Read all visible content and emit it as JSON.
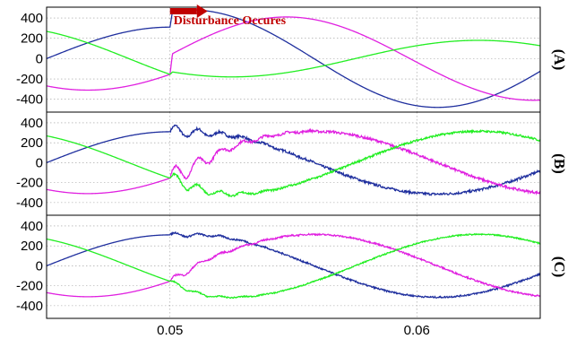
{
  "chart_data": {
    "type": "line",
    "xlim": [
      0.045,
      0.065
    ],
    "xticks": [
      0.05,
      0.06
    ],
    "xtick_labels": [
      "0.05",
      "0.06"
    ],
    "grid": true,
    "annotation": {
      "text": "Disturbance Occures",
      "x": 0.05,
      "color": "#c00000"
    },
    "series_colors": {
      "blue": "#1f2f9e",
      "magenta": "#e020e0",
      "green": "#22ee22"
    },
    "panels": [
      {
        "label": "(A)",
        "ylim": [
          -500,
          480
        ],
        "yticks": [
          400,
          200,
          0,
          -200,
          -400
        ],
        "ytick_labels": [
          "400",
          "200",
          "0",
          "-200",
          "-400"
        ],
        "series": [
          {
            "color": "blue",
            "before": {
              "amp": 310,
              "phase_deg": 0
            },
            "after": {
              "amp": 480,
              "phase_deg": -15,
              "transition_ms": 0.1
            },
            "noise": 0
          },
          {
            "color": "magenta",
            "before": {
              "amp": 310,
              "phase_deg": -120
            },
            "after": {
              "amp": 410,
              "phase_deg": -85,
              "transition_ms": 0.1
            },
            "noise": 0
          },
          {
            "color": "green",
            "before": {
              "amp": 310,
              "phase_deg": 120
            },
            "after": {
              "amp": 180,
              "phase_deg": 135,
              "transition_ms": 0.1
            },
            "noise": 0
          }
        ]
      },
      {
        "label": "(B)",
        "ylim": [
          -500,
          480
        ],
        "yticks": [
          400,
          200,
          0,
          -200,
          -400
        ],
        "ytick_labels": [
          "400",
          "200",
          "0",
          "-200",
          "-400"
        ],
        "series": [
          {
            "color": "blue",
            "before": {
              "amp": 310,
              "phase_deg": 0
            },
            "after": {
              "amp": 315,
              "phase_deg": -15,
              "transition_ms": 2.5
            },
            "noise": 12,
            "osc": 70
          },
          {
            "color": "magenta",
            "before": {
              "amp": 310,
              "phase_deg": -120
            },
            "after": {
              "amp": 315,
              "phase_deg": -105,
              "transition_ms": 2.5
            },
            "noise": 12,
            "osc": 110
          },
          {
            "color": "green",
            "before": {
              "amp": 310,
              "phase_deg": 120
            },
            "after": {
              "amp": 315,
              "phase_deg": 135,
              "transition_ms": 2.5
            },
            "noise": 10,
            "osc": 70
          }
        ]
      },
      {
        "label": "(C)",
        "ylim": [
          -500,
          480
        ],
        "yticks": [
          400,
          200,
          0,
          -200,
          -400
        ],
        "ytick_labels": [
          "400",
          "200",
          "0",
          "-200",
          "-400"
        ],
        "series": [
          {
            "color": "blue",
            "before": {
              "amp": 310,
              "phase_deg": 0
            },
            "after": {
              "amp": 315,
              "phase_deg": -15,
              "transition_ms": 1.5
            },
            "noise": 8,
            "osc": 25
          },
          {
            "color": "magenta",
            "before": {
              "amp": 310,
              "phase_deg": -120
            },
            "after": {
              "amp": 315,
              "phase_deg": -105,
              "transition_ms": 1.5
            },
            "noise": 8,
            "osc": 35
          },
          {
            "color": "green",
            "before": {
              "amp": 310,
              "phase_deg": 120
            },
            "after": {
              "amp": 315,
              "phase_deg": 135,
              "transition_ms": 1.5
            },
            "noise": 6,
            "osc": 20
          }
        ]
      }
    ]
  }
}
